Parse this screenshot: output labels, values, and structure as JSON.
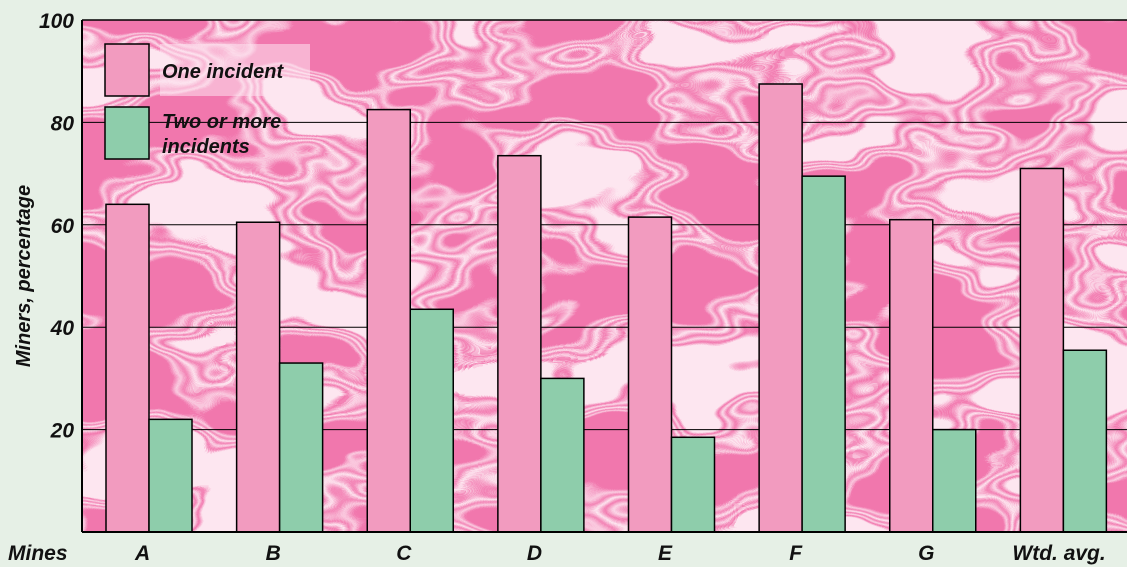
{
  "chart_data": {
    "type": "bar",
    "ylabel": "Miners, percentage",
    "x_axis_prefix": "Mines",
    "categories": [
      "A",
      "B",
      "C",
      "D",
      "E",
      "F",
      "G",
      "Wtd. avg."
    ],
    "series": [
      {
        "name": "One incident",
        "values": [
          64,
          60.5,
          82.5,
          73.5,
          61.5,
          87.5,
          61,
          71
        ],
        "color": "#f29bbf"
      },
      {
        "name": "Two or more incidents",
        "name_lines": [
          "Two or more",
          "incidents"
        ],
        "values": [
          22,
          33,
          43.5,
          30,
          18.5,
          69.5,
          20,
          35.5
        ],
        "color": "#8ecdab"
      }
    ],
    "ylim": [
      0,
      100
    ],
    "yticks": [
      20,
      40,
      60,
      80,
      100
    ],
    "ytick_labels": [
      "20",
      "40",
      "60",
      "80",
      "100"
    ],
    "grid": true,
    "legend_position": "top-left",
    "background": "pink marbled texture"
  }
}
